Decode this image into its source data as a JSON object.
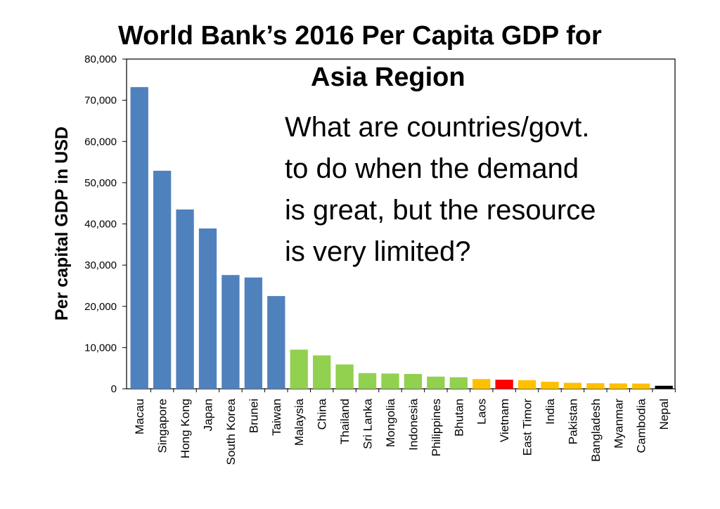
{
  "chart_data": {
    "type": "bar",
    "title": "World Bank’s 2016 Per Capita GDP for Asia Region",
    "title_lines": [
      "World Bank’s 2016 Per Capita GDP for",
      "Asia Region"
    ],
    "xlabel": "",
    "ylabel": "Per capital GDP in USD",
    "ylim": [
      0,
      80000
    ],
    "yticks": [
      0,
      10000,
      20000,
      30000,
      40000,
      50000,
      60000,
      70000,
      80000
    ],
    "ytick_labels": [
      "0",
      "10,000",
      "20,000",
      "30,000",
      "40,000",
      "50,000",
      "60,000",
      "70,000",
      "80,000"
    ],
    "grid": false,
    "categories": [
      "Macau",
      "Singapore",
      "Hong Kong",
      "Japan",
      "South Korea",
      "Brunei",
      "Taiwan",
      "Malaysia",
      "China",
      "Thailand",
      "Sri Lanka",
      "Mongolia",
      "Indonesia",
      "Philippines",
      "Bhutan",
      "Laos",
      "Vietnam",
      "East Timor",
      "India",
      "Pakistan",
      "Bangladesh",
      "Myanmar",
      "Cambodia",
      "Nepal"
    ],
    "values": [
      73200,
      52900,
      43500,
      38900,
      27600,
      27000,
      22500,
      9500,
      8100,
      5900,
      3800,
      3700,
      3600,
      2950,
      2800,
      2350,
      2200,
      2100,
      1700,
      1450,
      1350,
      1300,
      1270,
      730
    ],
    "bar_colors": [
      "#4f81bd",
      "#4f81bd",
      "#4f81bd",
      "#4f81bd",
      "#4f81bd",
      "#4f81bd",
      "#4f81bd",
      "#92d050",
      "#92d050",
      "#92d050",
      "#92d050",
      "#92d050",
      "#92d050",
      "#92d050",
      "#92d050",
      "#ffc000",
      "#ff0000",
      "#ffc000",
      "#ffc000",
      "#ffc000",
      "#ffc000",
      "#ffc000",
      "#ffc000",
      "#000000"
    ]
  },
  "annotation": {
    "lines": [
      "What are countries/govt.",
      "to do when the demand",
      "is great, but the resource",
      "is very limited?"
    ]
  }
}
